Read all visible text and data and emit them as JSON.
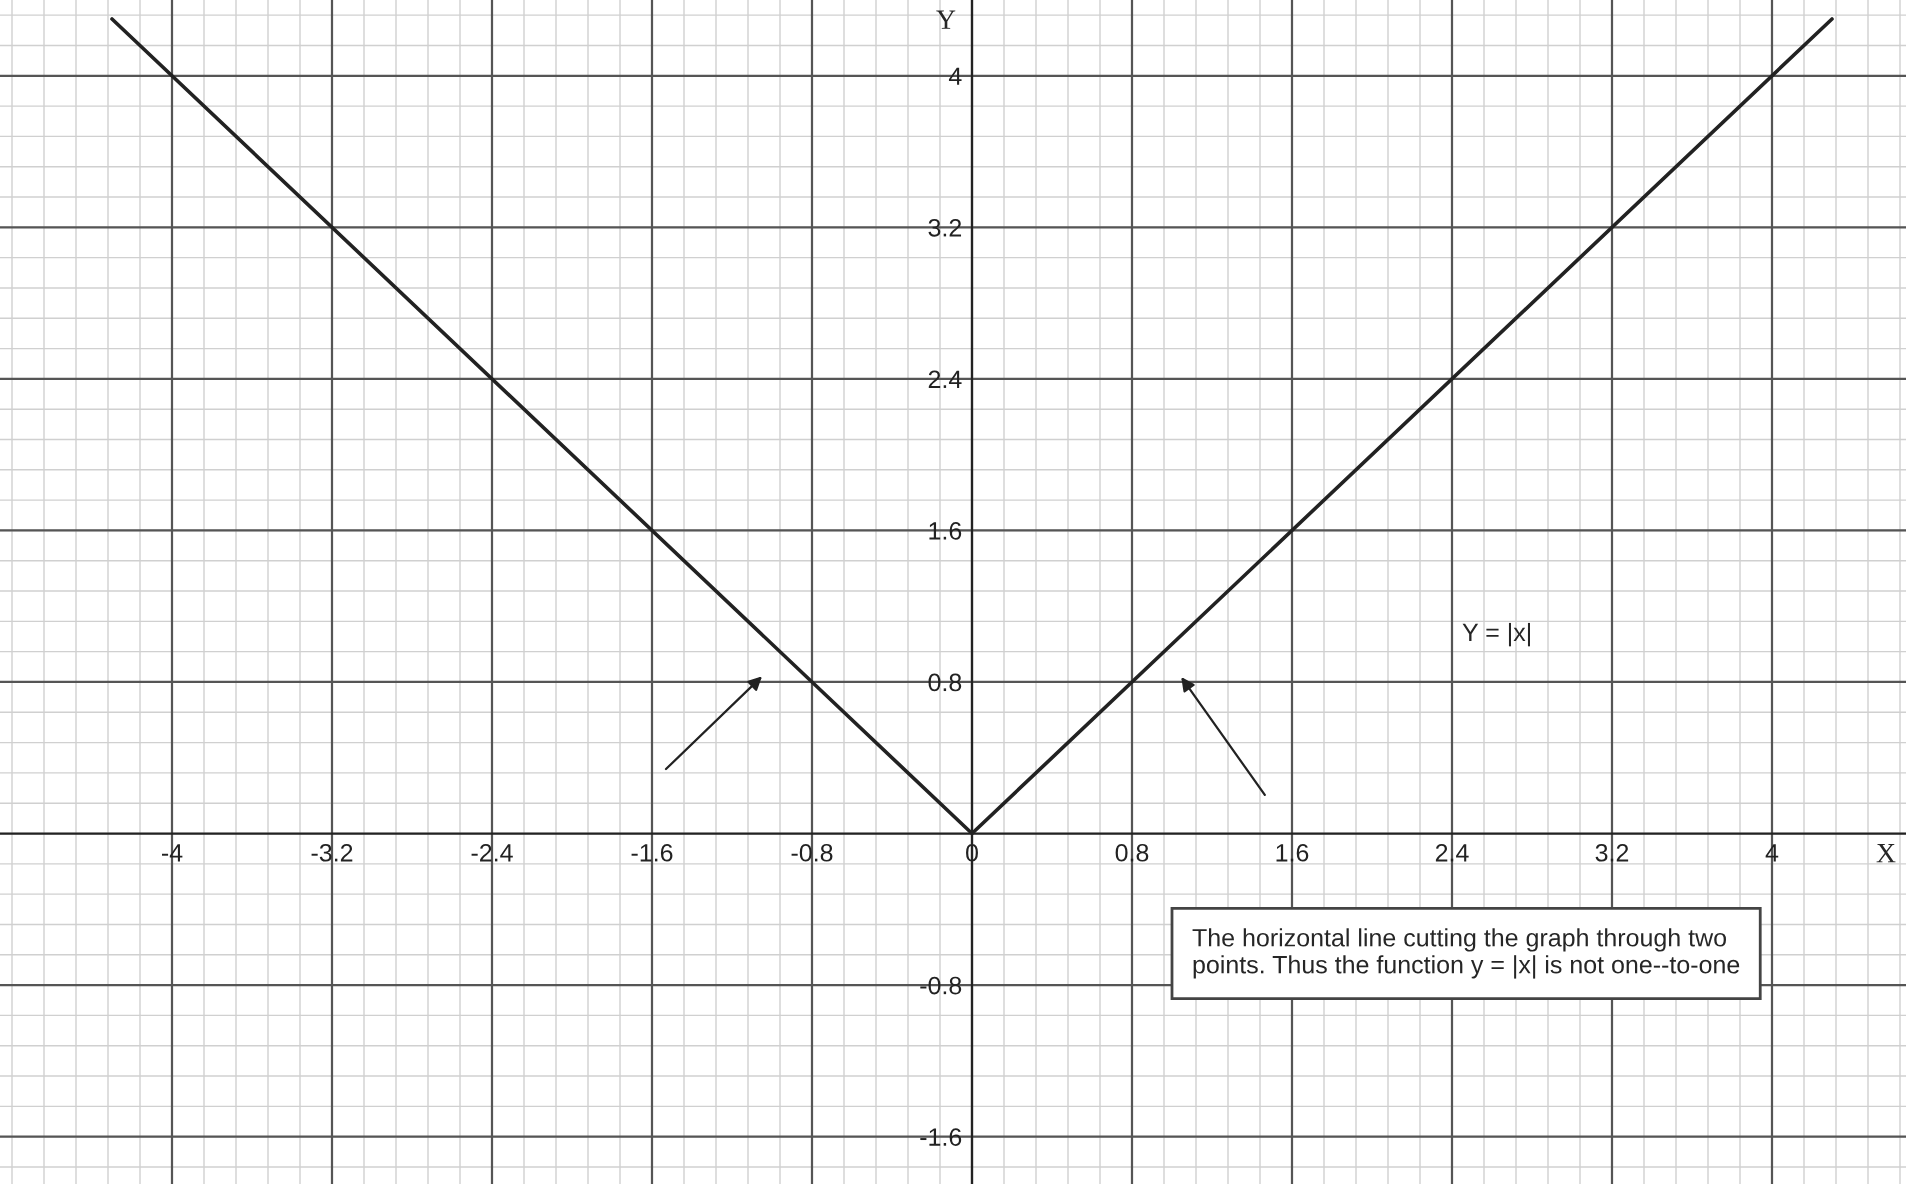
{
  "chart_data": {
    "type": "line",
    "x": [
      -4.3,
      0,
      4.3
    ],
    "series": [
      {
        "color": "#222222",
        "values": [
          4.3,
          0,
          4.3
        ]
      }
    ],
    "xlabel": "X",
    "ylabel": "Y",
    "xlim": [
      -4.86,
      4.67
    ],
    "ylim": [
      -1.85,
      4.4
    ],
    "xticks": [
      -4,
      -3.2,
      -2.4,
      -1.6,
      -0.8,
      0,
      0.8,
      1.6,
      2.4,
      3.2,
      4
    ],
    "yticks": [
      -1.6,
      -0.8,
      0.8,
      1.6,
      2.4,
      3.2,
      4
    ],
    "grid": true,
    "marker": "none",
    "line_style": "solid",
    "annotations": [
      "Y = |x|",
      "The horizontal line cutting the graph through two points. Thus the function y = |x| is not one--to-one"
    ]
  }
}
